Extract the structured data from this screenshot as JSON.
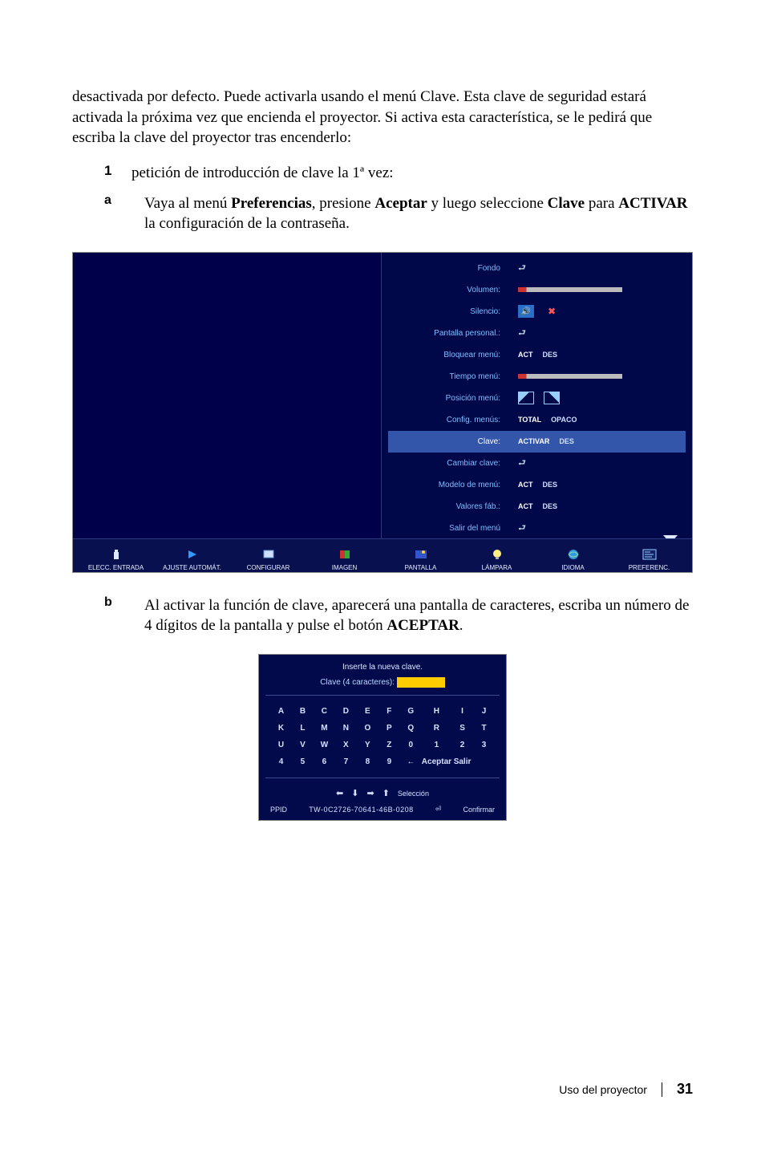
{
  "intro": "desactivada por defecto. Puede activarla usando el menú Clave. Esta clave de seguridad estará activada la próxima vez que encienda el proyector. Si activa esta característica, se le pedirá que escriba la clave del proyector tras encenderlo:",
  "step1_num": "1",
  "step1_text": "petición de introducción de clave la 1ª vez:",
  "sub_a_letter": "a",
  "sub_a_before": "Vaya al menú ",
  "sub_a_bold1": "Preferencias",
  "sub_a_mid": ", presione ",
  "sub_a_bold2": "Aceptar",
  "sub_a_after": " y luego seleccione ",
  "sub_a_bold3": "Clave",
  "sub_a_para": " para ",
  "sub_a_bold4": "ACTIVAR",
  "sub_a_end": " la configuración de la contraseña.",
  "sub_b_letter": "b",
  "sub_b_before": "Al activar la función de clave, aparecerá una pantalla de caracteres, escriba un número de 4 dígitos de la pantalla y pulse el botón ",
  "sub_b_bold": "ACEPTAR",
  "sub_b_end": ".",
  "prefs": {
    "rows": [
      {
        "label": "Fondo",
        "type": "enter"
      },
      {
        "label": "Volumen:",
        "type": "slider"
      },
      {
        "label": "Silencio:",
        "type": "mute"
      },
      {
        "label": "Pantalla personal.:",
        "type": "enter"
      },
      {
        "label": "Bloquear menú:",
        "type": "actdes",
        "a": "ACT",
        "b": "DES"
      },
      {
        "label": "Tiempo menú:",
        "type": "slider"
      },
      {
        "label": "Posición menú:",
        "type": "pos"
      },
      {
        "label": "Config. menús:",
        "type": "opts",
        "a": "TOTAL",
        "b": "OPACO"
      },
      {
        "label": "Clave:",
        "type": "opts",
        "a": "ACTIVAR",
        "b": "DES",
        "hl": true
      },
      {
        "label": "Cambiar clave:",
        "type": "enter"
      },
      {
        "label": "Modelo de menú:",
        "type": "actdes",
        "a": "ACT",
        "b": "DES"
      },
      {
        "label": "Valores fáb.:",
        "type": "actdes",
        "a": "ACT",
        "b": "DES"
      },
      {
        "label": "Salir del menú",
        "type": "enter"
      }
    ],
    "nav": [
      "ELECC. ENTRADA",
      "AJUSTE AUTOMÁT.",
      "CONFIGURAR",
      "IMAGEN",
      "PANTALLA",
      "LÁMPARA",
      "IDIOMA",
      "PREFERENC."
    ]
  },
  "pwd": {
    "title": "Inserte la nueva clave.",
    "line_label": "Clave (4 caracteres): ",
    "mask": "X  X  X  X",
    "keys": [
      "A",
      "B",
      "C",
      "D",
      "E",
      "F",
      "G",
      "H",
      "I",
      "J",
      "K",
      "L",
      "M",
      "N",
      "O",
      "P",
      "Q",
      "R",
      "S",
      "T",
      "U",
      "V",
      "W",
      "X",
      "Y",
      "Z",
      "0",
      "1",
      "2",
      "3",
      "4",
      "5",
      "6",
      "7",
      "8",
      "9",
      "←",
      "Aceptar",
      "Salir"
    ],
    "sel": "Selección",
    "ppid": "PPID",
    "serial": "TW-0C2726-70641-46B-0208",
    "confirm": "Confirmar"
  },
  "footer": {
    "label": "Uso del proyector",
    "page": "31"
  },
  "colors": {
    "panel_bg": "#020a4c",
    "link_blue": "#7fbfff",
    "highlight": "#3355aa",
    "yellow": "#ffcc00"
  }
}
